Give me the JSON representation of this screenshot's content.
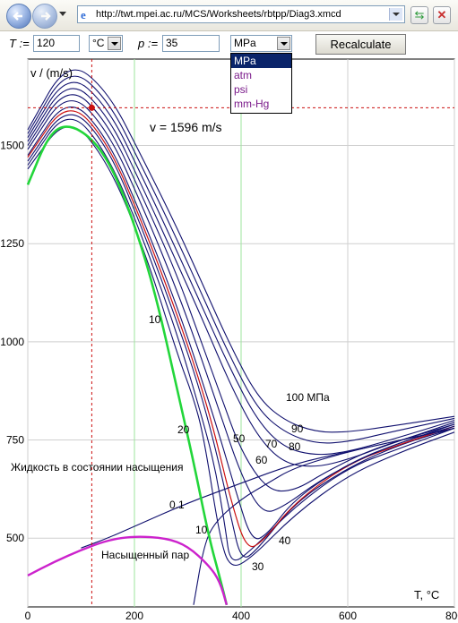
{
  "browser": {
    "url": "http://twt.mpei.ac.ru/MCS/Worksheets/rbtpp/Diag3.xmcd"
  },
  "form": {
    "t_label": "T :=",
    "t_value": "120",
    "t_unit": "°C",
    "p_label": "p :=",
    "p_value": "35",
    "p_unit": "MPa",
    "button": "Recalculate",
    "unit_options": [
      "MPa",
      "atm",
      "psi",
      "mm-Hg"
    ]
  },
  "chart_data": {
    "type": "line",
    "xlabel": "T, °C",
    "ylabel": "v / (m/s)",
    "xlim": [
      0,
      800
    ],
    "ylim": [
      325,
      1720
    ],
    "x_ticks": [
      "0",
      "200",
      "400",
      "600",
      "800"
    ],
    "y_ticks": [
      "500",
      "750",
      "1000",
      "1250",
      "1500"
    ],
    "marker": {
      "x": 120,
      "y": 1596,
      "label": "v = 1596 m/s"
    },
    "vlines": [
      200,
      400
    ],
    "annotations": {
      "saturated_liquid": "Жидкость в состоянии насыщения",
      "saturated_vapor": "Насыщенный пар",
      "p10_upper": "10",
      "p20": "20",
      "p50": "50",
      "p70": "70",
      "p80": "80",
      "p60": "60",
      "p90": "90",
      "p100": "100 МПа",
      "p01": "0.1",
      "p10_lower": "10",
      "p40": "40",
      "p30": "30"
    },
    "series": [
      {
        "name": "10",
        "x": [
          0,
          75,
          150,
          220,
          280,
          310,
          330,
          360,
          380,
          420,
          500,
          600,
          700,
          800
        ],
        "y": [
          1440,
          1580,
          1460,
          1230,
          970,
          860,
          760,
          500,
          420,
          450,
          560,
          660,
          720,
          770
        ]
      },
      {
        "name": "20",
        "x": [
          0,
          75,
          150,
          220,
          280,
          320,
          350,
          370,
          380,
          420,
          500,
          600,
          700,
          800
        ],
        "y": [
          1450,
          1600,
          1480,
          1250,
          1020,
          840,
          690,
          530,
          430,
          470,
          580,
          680,
          730,
          780
        ]
      },
      {
        "name": "30",
        "x": [
          0,
          75,
          150,
          220,
          280,
          320,
          350,
          380,
          400,
          430,
          500,
          600,
          700,
          800
        ],
        "y": [
          1460,
          1610,
          1500,
          1270,
          1050,
          890,
          740,
          560,
          440,
          470,
          590,
          680,
          740,
          780
        ]
      },
      {
        "name": "35",
        "x": [
          0,
          75,
          150,
          220,
          280,
          320,
          350,
          380,
          410,
          440,
          500,
          600,
          700,
          800
        ],
        "y": [
          1470,
          1620,
          1510,
          1285,
          1070,
          910,
          770,
          600,
          470,
          490,
          590,
          690,
          740,
          785
        ]
      },
      {
        "name": "40",
        "x": [
          0,
          75,
          150,
          220,
          280,
          320,
          360,
          390,
          420,
          450,
          500,
          600,
          700,
          800
        ],
        "y": [
          1475,
          1630,
          1520,
          1300,
          1090,
          930,
          760,
          620,
          490,
          510,
          600,
          690,
          745,
          785
        ]
      },
      {
        "name": "50",
        "x": [
          0,
          75,
          150,
          220,
          280,
          320,
          360,
          400,
          440,
          480,
          550,
          650,
          800
        ],
        "y": [
          1490,
          1645,
          1540,
          1330,
          1130,
          980,
          820,
          660,
          560,
          580,
          650,
          720,
          790
        ]
      },
      {
        "name": "60",
        "x": [
          0,
          75,
          150,
          220,
          280,
          320,
          360,
          400,
          450,
          500,
          560,
          650,
          800
        ],
        "y": [
          1500,
          1660,
          1560,
          1355,
          1170,
          1020,
          870,
          720,
          620,
          620,
          670,
          730,
          790
        ]
      },
      {
        "name": "70",
        "x": [
          0,
          75,
          150,
          220,
          280,
          330,
          380,
          430,
          480,
          540,
          600,
          680,
          800
        ],
        "y": [
          1510,
          1675,
          1580,
          1380,
          1200,
          1050,
          890,
          760,
          690,
          680,
          700,
          740,
          795
        ]
      },
      {
        "name": "80",
        "x": [
          0,
          75,
          150,
          220,
          280,
          330,
          380,
          430,
          480,
          540,
          600,
          680,
          800
        ],
        "y": [
          1520,
          1690,
          1600,
          1405,
          1230,
          1080,
          930,
          800,
          730,
          710,
          720,
          750,
          800
        ]
      },
      {
        "name": "90",
        "x": [
          0,
          75,
          150,
          220,
          280,
          330,
          380,
          430,
          480,
          540,
          600,
          680,
          800
        ],
        "y": [
          1530,
          1705,
          1620,
          1430,
          1260,
          1110,
          960,
          830,
          770,
          740,
          745,
          770,
          805
        ]
      },
      {
        "name": "100",
        "x": [
          0,
          75,
          150,
          220,
          280,
          330,
          380,
          430,
          480,
          540,
          600,
          680,
          800
        ],
        "y": [
          1540,
          1720,
          1640,
          1455,
          1290,
          1140,
          990,
          860,
          800,
          770,
          770,
          785,
          810
        ]
      },
      {
        "name": "0.1",
        "x": [
          100,
          150,
          200,
          300,
          400,
          500,
          600,
          700,
          800
        ],
        "y": [
          475,
          500,
          530,
          590,
          640,
          690,
          720,
          750,
          780
        ]
      },
      {
        "name": "10l",
        "x": [
          311,
          330,
          350,
          400,
          450,
          500,
          600,
          700,
          800
        ],
        "y": [
          330,
          480,
          540,
          600,
          640,
          680,
          720,
          750,
          780
        ]
      },
      {
        "name": "sat_liquid",
        "x": [
          0,
          40,
          75,
          120,
          160,
          200,
          240,
          280,
          310,
          340,
          360,
          373
        ],
        "y": [
          1400,
          1530,
          1555,
          1520,
          1440,
          1300,
          1120,
          880,
          700,
          500,
          400,
          330
        ]
      },
      {
        "name": "sat_vapor",
        "x": [
          0,
          50,
          100,
          150,
          200,
          260,
          300,
          340,
          360,
          373
        ],
        "y": [
          405,
          440,
          470,
          495,
          505,
          500,
          480,
          430,
          390,
          330
        ]
      }
    ]
  }
}
